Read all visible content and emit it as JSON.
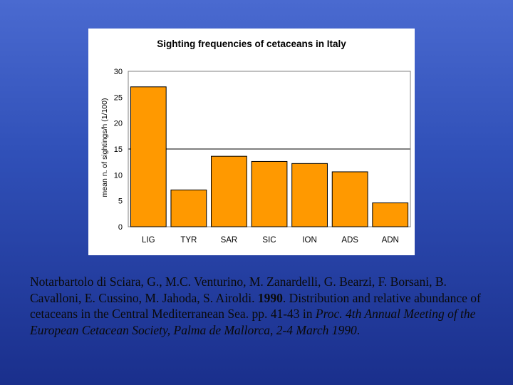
{
  "chart_data": {
    "type": "bar",
    "title": "Sighting frequencies of cetaceans in Italy",
    "xlabel": "",
    "ylabel": "mean n. of sightings/h (1/100)",
    "categories": [
      "LIG",
      "TYR",
      "SAR",
      "SIC",
      "ION",
      "ADS",
      "ADN"
    ],
    "values": [
      27,
      7.1,
      13.6,
      12.6,
      12.2,
      10.6,
      4.6
    ],
    "ylim": [
      0,
      30
    ],
    "yticks": [
      0,
      5,
      10,
      15,
      20,
      25,
      30
    ],
    "ytick_labels": [
      "0",
      "5",
      "10",
      "15",
      "20",
      "25",
      "30"
    ],
    "gridline_at": [
      15
    ],
    "legend": "none",
    "bar_color": "#ff9900",
    "bar_edge_color": "#000000"
  },
  "citation": {
    "part1": "Notarbartolo di Sciara, G., M.C. Venturino, M. Zanardelli, G. Bearzi, F. Borsani, B. Cavalloni, E. Cussino, M. Jahoda, S. Airoldi. ",
    "year": "1990",
    "part2": ". Distribution and relative abundance of cetaceans in the Central Mediterranean Sea. pp. 41-43 in ",
    "italic": "Proc. 4th Annual Meeting of the European Cetacean Society, Palma de Mallorca, 2-4 March 1990",
    "end": "."
  }
}
